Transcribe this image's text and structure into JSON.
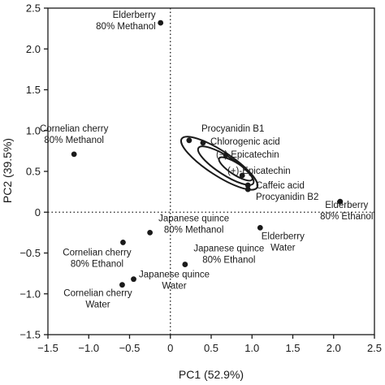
{
  "chart_data": {
    "type": "scatter",
    "xlabel": "PC1 (52.9%)",
    "ylabel": "PC2 (39.5%)",
    "xlim": [
      -1.5,
      2.5
    ],
    "ylim": [
      -1.5,
      2.5
    ],
    "xticks": [
      -1.5,
      -1.0,
      -0.5,
      0,
      0.5,
      1.0,
      1.5,
      2.0,
      2.5
    ],
    "yticks": [
      -1.5,
      -1.0,
      -0.5,
      0,
      0.5,
      1.0,
      1.5,
      2.0,
      2.5
    ],
    "xtick_labels": [
      "−1.5",
      "−1.0",
      "−0.5",
      "0",
      "0.5",
      "1.0",
      "1.5",
      "2.0",
      "2.5"
    ],
    "ytick_labels": [
      "−1.5",
      "−1.0",
      "−0.5",
      "0",
      "0.5",
      "1.0",
      "1.5",
      "2.0",
      "2.5"
    ],
    "grid": false,
    "reference_lines": [
      {
        "axis": "x",
        "value": 0,
        "style": "dotted"
      },
      {
        "axis": "y",
        "value": 0,
        "style": "dotted"
      }
    ],
    "point_color": "#1a1a1a",
    "samples": [
      {
        "x": -0.12,
        "y": 2.32,
        "lines": [
          "Elderberry",
          "80% Methanol"
        ],
        "anchor": "end"
      },
      {
        "x": -1.18,
        "y": 0.71,
        "lines": [
          "Cornelian cherry",
          "80% Methanol"
        ],
        "anchor": "middle"
      },
      {
        "x": 2.08,
        "y": 0.13,
        "lines": [
          "Elderberry",
          "80% Ethanol"
        ],
        "anchor": "middle"
      },
      {
        "x": 1.1,
        "y": -0.19,
        "lines": [
          "Elderberry",
          "Water"
        ],
        "anchor": "middle"
      },
      {
        "x": -0.25,
        "y": -0.25,
        "lines": [
          "Japanese quince",
          "80% Methanol"
        ],
        "anchor": "middle"
      },
      {
        "x": -0.58,
        "y": -0.37,
        "lines": [
          "Cornelian cherry",
          "80% Ethanol"
        ],
        "anchor": "middle"
      },
      {
        "x": 0.18,
        "y": -0.64,
        "lines": [
          "Japanese quince",
          "80% Ethanol"
        ],
        "anchor": "middle"
      },
      {
        "x": -0.45,
        "y": -0.82,
        "lines": [
          "Japanese quince",
          "Water"
        ],
        "anchor": "middle"
      },
      {
        "x": -0.59,
        "y": -0.89,
        "lines": [
          "Cornelian cherry",
          "Water"
        ],
        "anchor": "middle"
      }
    ],
    "compounds": [
      {
        "x": 0.23,
        "y": 0.88,
        "label": "Procyanidin B1"
      },
      {
        "x": 0.4,
        "y": 0.85,
        "label": "Chlorogenic acid"
      },
      {
        "x": 0.68,
        "y": 0.7,
        "label": "(−)-Epicatechin"
      },
      {
        "x": 0.88,
        "y": 0.45,
        "label": "(+)-Epicatechin"
      },
      {
        "x": 0.95,
        "y": 0.33,
        "label": "Caffeic acid"
      },
      {
        "x": 0.95,
        "y": 0.28,
        "label": "Procyanidin B2"
      }
    ],
    "ellipses": [
      {
        "cx": 0.6,
        "cy": 0.6,
        "rx": 0.55,
        "ry": 0.15,
        "angle": 33
      },
      {
        "cx": 0.68,
        "cy": 0.57,
        "rx": 0.4,
        "ry": 0.11,
        "angle": 33
      },
      {
        "cx": 0.8,
        "cy": 0.53,
        "rx": 0.24,
        "ry": 0.07,
        "angle": 33
      }
    ]
  }
}
